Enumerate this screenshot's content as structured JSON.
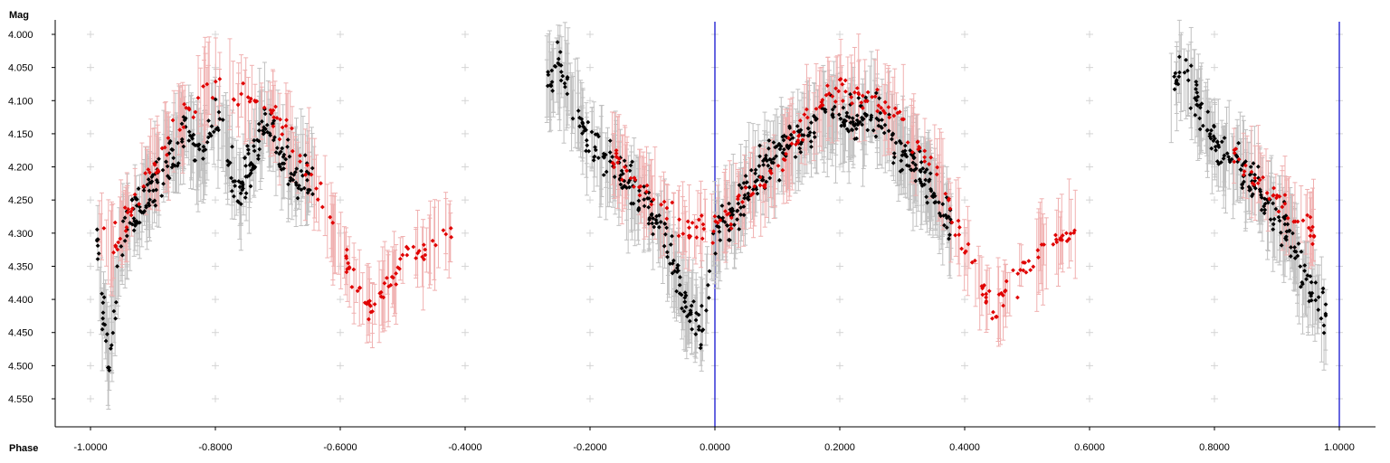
{
  "chart_data": {
    "type": "scatter",
    "xlabel": "Phase",
    "ylabel": "Mag",
    "xlim": [
      -1.0,
      1.0
    ],
    "ylim": [
      4.0,
      4.55
    ],
    "y_inverted": true,
    "grid": "plus-markers",
    "x_ticks": [
      "-1.0000",
      "-0.8000",
      "-0.6000",
      "-0.4000",
      "-0.2000",
      "0.0000",
      "0.2000",
      "0.4000",
      "0.6000",
      "0.8000",
      "1.0000"
    ],
    "y_ticks": [
      "4.000",
      "4.050",
      "4.100",
      "4.150",
      "4.200",
      "4.250",
      "4.300",
      "4.350",
      "4.400",
      "4.450",
      "4.500",
      "4.550"
    ],
    "vertical_lines": [
      {
        "x": 0.0,
        "color": "#0000cc"
      },
      {
        "x": 1.0,
        "color": "#0000cc"
      }
    ],
    "series": [
      {
        "color": "#000000",
        "errorbar_color": "#c0c0c0",
        "approx_count": 900,
        "samples": [
          {
            "x": -0.99,
            "y": 4.31
          },
          {
            "x": -0.98,
            "y": 4.42
          },
          {
            "x": -0.97,
            "y": 4.5
          },
          {
            "x": -0.95,
            "y": 4.3
          },
          {
            "x": -0.92,
            "y": 4.26
          },
          {
            "x": -0.88,
            "y": 4.2
          },
          {
            "x": -0.85,
            "y": 4.15
          },
          {
            "x": -0.82,
            "y": 4.18
          },
          {
            "x": -0.8,
            "y": 4.12
          },
          {
            "x": -0.76,
            "y": 4.24
          },
          {
            "x": -0.72,
            "y": 4.13
          },
          {
            "x": -0.68,
            "y": 4.2
          },
          {
            "x": -0.64,
            "y": 4.22
          },
          {
            "x": -0.27,
            "y": 4.08
          },
          {
            "x": -0.25,
            "y": 4.05
          },
          {
            "x": -0.22,
            "y": 4.12
          },
          {
            "x": -0.19,
            "y": 4.18
          },
          {
            "x": -0.16,
            "y": 4.2
          },
          {
            "x": -0.12,
            "y": 4.25
          },
          {
            "x": -0.08,
            "y": 4.3
          },
          {
            "x": -0.05,
            "y": 4.4
          },
          {
            "x": -0.02,
            "y": 4.45
          },
          {
            "x": 0.0,
            "y": 4.3
          },
          {
            "x": 0.03,
            "y": 4.28
          },
          {
            "x": 0.06,
            "y": 4.22
          },
          {
            "x": 0.1,
            "y": 4.18
          },
          {
            "x": 0.14,
            "y": 4.15
          },
          {
            "x": 0.18,
            "y": 4.12
          },
          {
            "x": 0.22,
            "y": 4.14
          },
          {
            "x": 0.26,
            "y": 4.12
          },
          {
            "x": 0.3,
            "y": 4.18
          },
          {
            "x": 0.34,
            "y": 4.22
          },
          {
            "x": 0.38,
            "y": 4.3
          },
          {
            "x": 0.73,
            "y": 4.08
          },
          {
            "x": 0.75,
            "y": 4.05
          },
          {
            "x": 0.78,
            "y": 4.12
          },
          {
            "x": 0.81,
            "y": 4.18
          },
          {
            "x": 0.84,
            "y": 4.2
          },
          {
            "x": 0.88,
            "y": 4.25
          },
          {
            "x": 0.92,
            "y": 4.3
          },
          {
            "x": 0.95,
            "y": 4.38
          },
          {
            "x": 0.98,
            "y": 4.42
          }
        ]
      },
      {
        "color": "#e00000",
        "errorbar_color": "#f0b0b0",
        "approx_count": 400,
        "samples": [
          {
            "x": -0.99,
            "y": 4.27
          },
          {
            "x": -0.97,
            "y": 4.33
          },
          {
            "x": -0.9,
            "y": 4.2
          },
          {
            "x": -0.85,
            "y": 4.13
          },
          {
            "x": -0.8,
            "y": 4.07
          },
          {
            "x": -0.75,
            "y": 4.1
          },
          {
            "x": -0.7,
            "y": 4.13
          },
          {
            "x": -0.65,
            "y": 4.2
          },
          {
            "x": -0.62,
            "y": 4.27
          },
          {
            "x": -0.58,
            "y": 4.37
          },
          {
            "x": -0.55,
            "y": 4.42
          },
          {
            "x": -0.52,
            "y": 4.37
          },
          {
            "x": -0.48,
            "y": 4.33
          },
          {
            "x": -0.44,
            "y": 4.31
          },
          {
            "x": -0.42,
            "y": 4.3
          },
          {
            "x": -0.17,
            "y": 4.18
          },
          {
            "x": -0.1,
            "y": 4.25
          },
          {
            "x": -0.04,
            "y": 4.3
          },
          {
            "x": 0.01,
            "y": 4.28
          },
          {
            "x": 0.1,
            "y": 4.2
          },
          {
            "x": 0.15,
            "y": 4.13
          },
          {
            "x": 0.2,
            "y": 4.08
          },
          {
            "x": 0.25,
            "y": 4.1
          },
          {
            "x": 0.3,
            "y": 4.13
          },
          {
            "x": 0.35,
            "y": 4.2
          },
          {
            "x": 0.38,
            "y": 4.27
          },
          {
            "x": 0.42,
            "y": 4.37
          },
          {
            "x": 0.45,
            "y": 4.42
          },
          {
            "x": 0.48,
            "y": 4.37
          },
          {
            "x": 0.52,
            "y": 4.33
          },
          {
            "x": 0.56,
            "y": 4.31
          },
          {
            "x": 0.58,
            "y": 4.3
          },
          {
            "x": 0.83,
            "y": 4.18
          },
          {
            "x": 0.9,
            "y": 4.25
          },
          {
            "x": 0.96,
            "y": 4.3
          }
        ]
      }
    ]
  }
}
